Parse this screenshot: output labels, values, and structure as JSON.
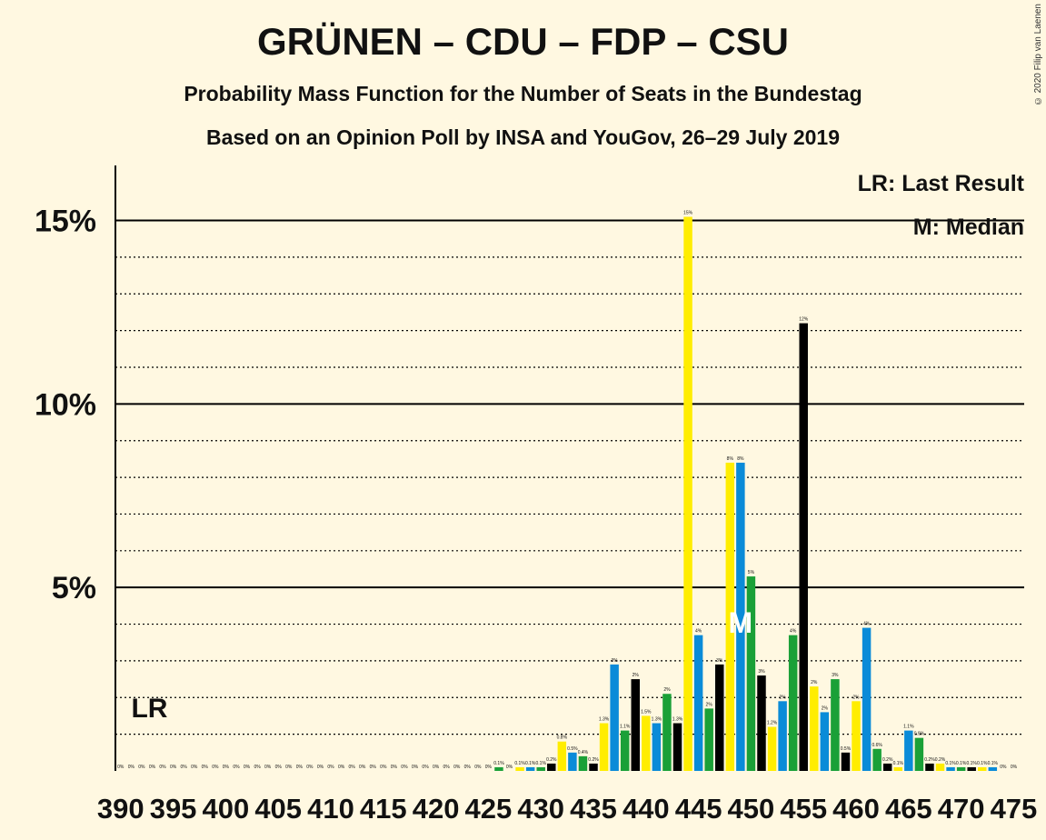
{
  "title": "GRÜNEN – CDU – FDP – CSU",
  "subtitle": "Probability Mass Function for the Number of Seats in the Bundestag",
  "subtitle2": "Based on an Opinion Poll by INSA and YouGov, 26–29 July 2019",
  "copyright": "© 2020 Filip van Laenen",
  "legend": {
    "last_result": "LR: Last Result",
    "median": "M: Median"
  },
  "markers": {
    "last_result_label": "LR",
    "median_label": "M"
  },
  "colors": {
    "background": "#FFF8E1",
    "green": "#1AA037",
    "black": "#000000",
    "yellow": "#FFED00",
    "blue": "#0A8BD8"
  },
  "chart_data": {
    "type": "bar",
    "ylim": [
      0,
      16.5
    ],
    "yticks": [
      5,
      10,
      15
    ],
    "ytick_labels": [
      "5%",
      "10%",
      "15%"
    ],
    "xlim": [
      389.5,
      476
    ],
    "xtick_labels": [
      "390",
      "395",
      "400",
      "405",
      "410",
      "415",
      "420",
      "425",
      "430",
      "435",
      "440",
      "445",
      "450",
      "455",
      "460",
      "465",
      "470",
      "475"
    ],
    "median_seat": 449,
    "last_result_seat": 393,
    "color_cycle": [
      "green",
      "black",
      "yellow",
      "blue"
    ],
    "x": [
      390,
      391,
      392,
      393,
      394,
      395,
      396,
      397,
      398,
      399,
      400,
      401,
      402,
      403,
      404,
      405,
      406,
      407,
      408,
      409,
      410,
      411,
      412,
      413,
      414,
      415,
      416,
      417,
      418,
      419,
      420,
      421,
      422,
      423,
      424,
      425,
      426,
      427,
      428,
      429,
      430,
      431,
      432,
      433,
      434,
      435,
      436,
      437,
      438,
      439,
      440,
      441,
      442,
      443,
      444,
      445,
      446,
      447,
      448,
      449,
      450,
      451,
      452,
      453,
      454,
      455,
      456,
      457,
      458,
      459,
      460,
      461,
      462,
      463,
      464,
      465,
      466,
      467,
      468,
      469,
      470,
      471,
      472,
      473,
      474,
      475
    ],
    "values": [
      0,
      0,
      0,
      0,
      0,
      0,
      0,
      0,
      0,
      0,
      0,
      0,
      0,
      0,
      0,
      0,
      0,
      0,
      0,
      0,
      0,
      0,
      0,
      0,
      0,
      0,
      0,
      0,
      0,
      0,
      0,
      0,
      0,
      0,
      0,
      0,
      0.1,
      0,
      0.1,
      0.1,
      0.1,
      0.2,
      0.8,
      0.5,
      0.4,
      0.2,
      1.3,
      2.9,
      1.1,
      2.5,
      1.5,
      1.3,
      2.1,
      1.3,
      15.1,
      3.7,
      1.7,
      2.9,
      8.4,
      8.4,
      5.3,
      2.6,
      1.2,
      1.9,
      3.7,
      12.2,
      2.3,
      1.6,
      2.5,
      0.5,
      1.9,
      3.9,
      0.6,
      0.2,
      0.1,
      1.1,
      0.9,
      0.2,
      0.2,
      0.1,
      0.1,
      0.1,
      0.1,
      0.1,
      0,
      0
    ],
    "labels": [
      "0%",
      "0%",
      "0%",
      "0%",
      "0%",
      "0%",
      "0%",
      "0%",
      "0%",
      "0%",
      "0%",
      "0%",
      "0%",
      "0%",
      "0%",
      "0%",
      "0%",
      "0%",
      "0%",
      "0%",
      "0%",
      "0%",
      "0%",
      "0%",
      "0%",
      "0%",
      "0%",
      "0%",
      "0%",
      "0%",
      "0%",
      "0%",
      "0%",
      "0%",
      "0%",
      "0%",
      "0.1%",
      "0%",
      "0.1%",
      "0.1%",
      "0.1%",
      "0.2%",
      "0.8%",
      "0.5%",
      "0.4%",
      "0.2%",
      "1.3%",
      "3%",
      "1.1%",
      "2%",
      "1.5%",
      "1.3%",
      "2%",
      "1.3%",
      "15%",
      "4%",
      "2%",
      "3%",
      "8%",
      "8%",
      "5%",
      "3%",
      "1.2%",
      "2%",
      "4%",
      "12%",
      "2%",
      "2%",
      "3%",
      "0.5%",
      "2%",
      "4%",
      "0.6%",
      "0.2%",
      "0.1%",
      "1.1%",
      "0.9%",
      "0.2%",
      "0.2%",
      "0.1%",
      "0.1%",
      "0.1%",
      "0.1%",
      "0.1%",
      "0%",
      "0%"
    ]
  }
}
